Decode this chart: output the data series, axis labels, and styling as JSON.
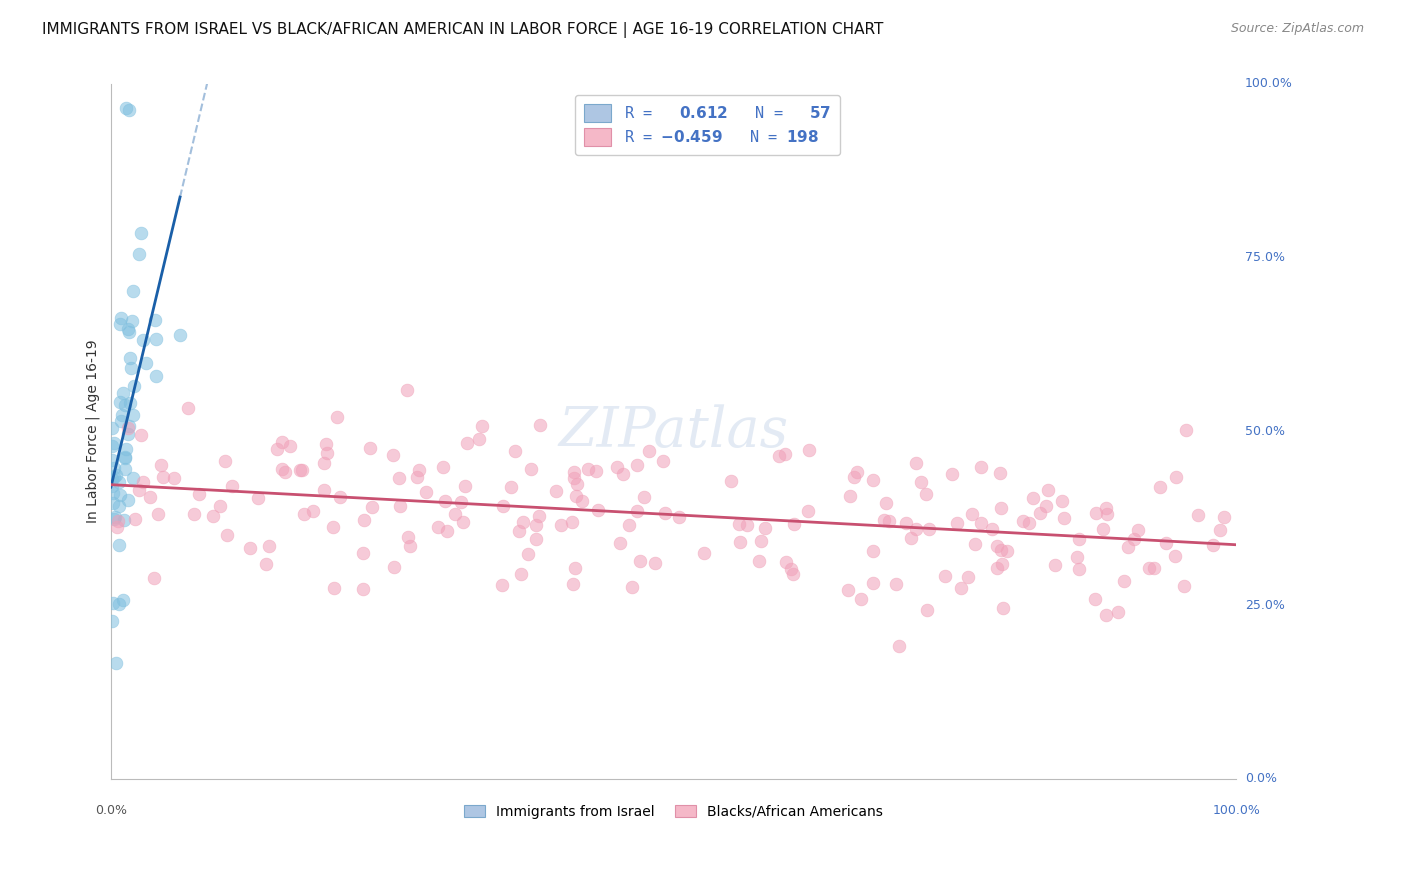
{
  "title": "IMMIGRANTS FROM ISRAEL VS BLACK/AFRICAN AMERICAN IN LABOR FORCE | AGE 16-19 CORRELATION CHART",
  "source": "Source: ZipAtlas.com",
  "ylabel": "In Labor Force | Age 16-19",
  "r_israel": 0.612,
  "n_israel": 57,
  "r_black": -0.459,
  "n_black": 198,
  "blue_scatter_color": "#7fbfdf",
  "blue_line_color": "#1a5fa8",
  "pink_scatter_color": "#f0a0b8",
  "pink_line_color": "#c85070",
  "watermark_color": "#ccdaeb",
  "watermark_text": "ZIPatlas",
  "legend_label_israel": "Immigrants from Israel",
  "legend_label_black": "Blacks/African Americans",
  "title_fontsize": 11,
  "source_fontsize": 9,
  "ylabel_fontsize": 10,
  "axis_tick_fontsize": 9,
  "legend_fontsize": 10,
  "watermark_fontsize": 40,
  "background_color": "#ffffff",
  "grid_color": "#cccccc",
  "right_tick_color": "#4472c4",
  "text_color": "#4472c4",
  "xlim": [
    0.0,
    1.0
  ],
  "ylim": [
    0.0,
    1.0
  ],
  "ytick_values": [
    0.0,
    0.25,
    0.5,
    0.75,
    1.0
  ],
  "ytick_labels": [
    "0.0%",
    "25.0%",
    "50.0%",
    "75.0%",
    "100.0%"
  ]
}
